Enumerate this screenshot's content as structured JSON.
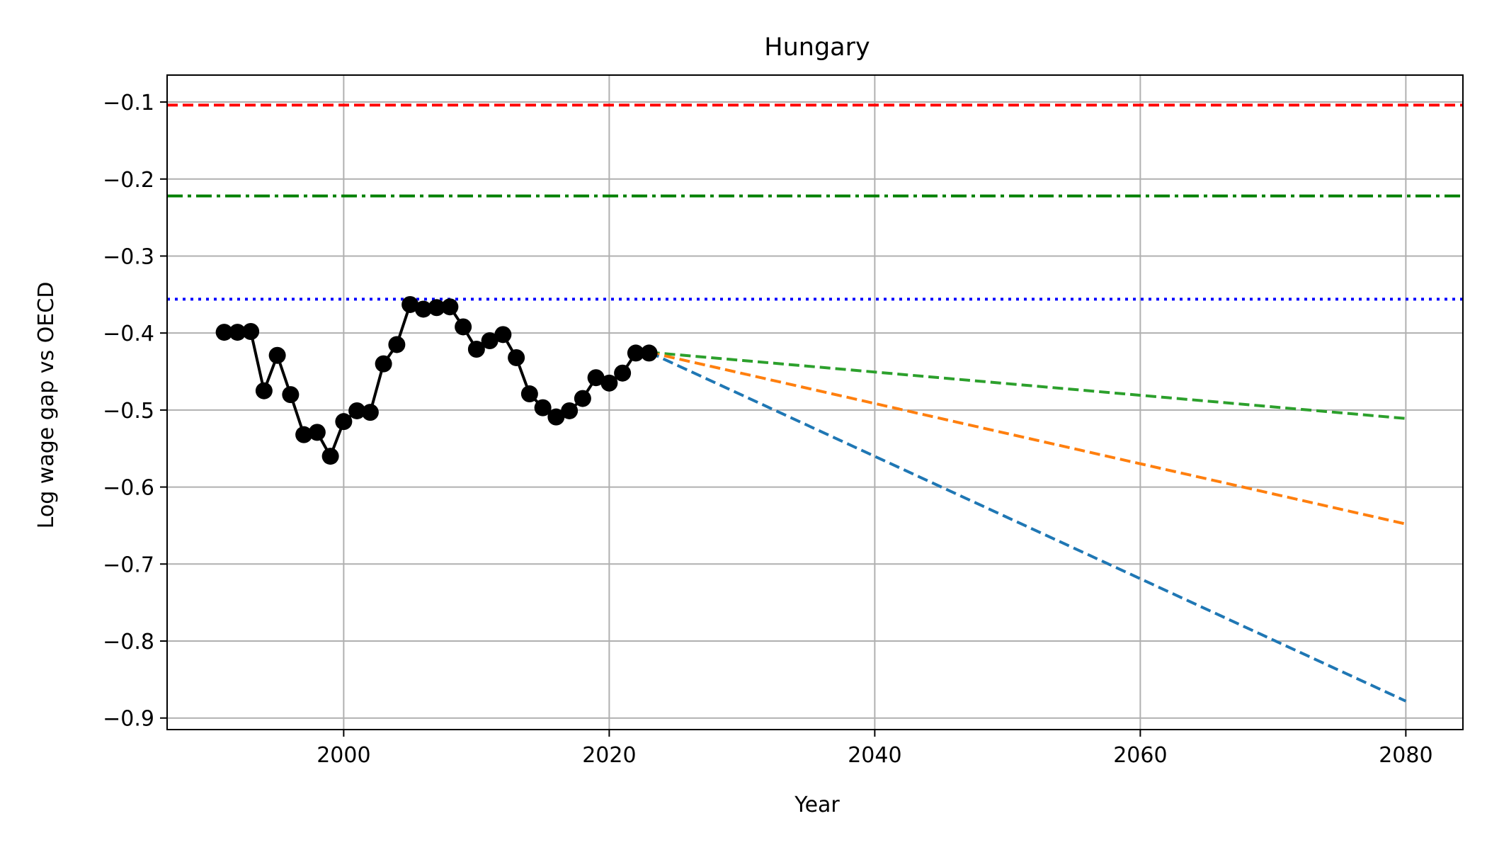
{
  "chart_data": {
    "type": "line",
    "title": "Hungary",
    "xlabel": "Year",
    "ylabel": "Log wage gap vs OECD",
    "xlim": [
      1986.7,
      2084.3
    ],
    "ylim": [
      -0.915,
      -0.065
    ],
    "xticks": [
      2000,
      2020,
      2040,
      2060,
      2080
    ],
    "xtick_labels": [
      "2000",
      "2020",
      "2040",
      "2060",
      "2080"
    ],
    "yticks": [
      -0.1,
      -0.2,
      -0.3,
      -0.4,
      -0.5,
      -0.6,
      -0.7,
      -0.8,
      -0.9
    ],
    "ytick_labels": [
      "−0.1",
      "−0.2",
      "−0.3",
      "−0.4",
      "−0.5",
      "−0.6",
      "−0.7",
      "−0.8",
      "−0.9"
    ],
    "grid": true,
    "colors": {
      "historical": "#000000",
      "ref_red": "#ff0000",
      "ref_green": "#008000",
      "ref_blue": "#0000ff",
      "proj_green": "#2ca02c",
      "proj_orange": "#ff7f0e",
      "proj_blue": "#1f77b4",
      "grid": "#b0b0b0"
    },
    "reference_lines": [
      {
        "name": "ref-red-dashed",
        "y": -0.104,
        "color": "#ff0000",
        "style": "dashed"
      },
      {
        "name": "ref-green-dashdot",
        "y": -0.222,
        "color": "#008000",
        "style": "dashdot"
      },
      {
        "name": "ref-blue-dotted",
        "y": -0.356,
        "color": "#0000ff",
        "style": "dotted"
      }
    ],
    "historical": {
      "name": "historical",
      "x": [
        1991,
        1992,
        1993,
        1994,
        1995,
        1996,
        1997,
        1998,
        1999,
        2000,
        2001,
        2002,
        2003,
        2004,
        2005,
        2006,
        2007,
        2008,
        2009,
        2010,
        2011,
        2012,
        2013,
        2014,
        2015,
        2016,
        2017,
        2018,
        2019,
        2020,
        2021,
        2022,
        2023
      ],
      "y": [
        -0.399,
        -0.399,
        -0.398,
        -0.475,
        -0.429,
        -0.48,
        -0.532,
        -0.529,
        -0.56,
        -0.515,
        -0.501,
        -0.503,
        -0.44,
        -0.415,
        -0.363,
        -0.369,
        -0.367,
        -0.366,
        -0.392,
        -0.421,
        -0.41,
        -0.402,
        -0.432,
        -0.479,
        -0.497,
        -0.509,
        -0.501,
        -0.485,
        -0.458,
        -0.465,
        -0.452,
        -0.426,
        -0.426
      ]
    },
    "projections": [
      {
        "name": "projection-green",
        "x": [
          2023,
          2080
        ],
        "y": [
          -0.425,
          -0.511
        ],
        "color": "#2ca02c"
      },
      {
        "name": "projection-orange",
        "x": [
          2023,
          2080
        ],
        "y": [
          -0.425,
          -0.648
        ],
        "color": "#ff7f0e"
      },
      {
        "name": "projection-blue",
        "x": [
          2023,
          2080
        ],
        "y": [
          -0.425,
          -0.878
        ],
        "color": "#1f77b4"
      }
    ]
  }
}
